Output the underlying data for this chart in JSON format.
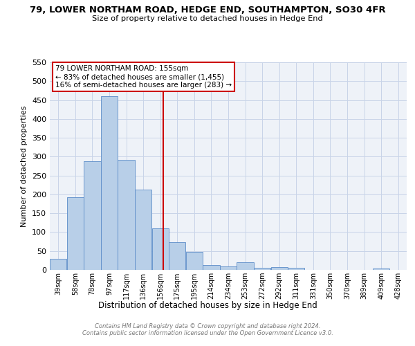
{
  "title": "79, LOWER NORTHAM ROAD, HEDGE END, SOUTHAMPTON, SO30 4FR",
  "subtitle": "Size of property relative to detached houses in Hedge End",
  "xlabel": "Distribution of detached houses by size in Hedge End",
  "ylabel": "Number of detached properties",
  "bar_values": [
    30,
    192,
    288,
    460,
    292,
    213,
    110,
    73,
    47,
    12,
    10,
    20,
    5,
    7,
    5,
    0,
    0,
    0,
    0,
    3,
    0
  ],
  "bar_labels": [
    "39sqm",
    "58sqm",
    "78sqm",
    "97sqm",
    "117sqm",
    "136sqm",
    "156sqm",
    "175sqm",
    "195sqm",
    "214sqm",
    "234sqm",
    "253sqm",
    "272sqm",
    "292sqm",
    "311sqm",
    "331sqm",
    "350sqm",
    "370sqm",
    "389sqm",
    "409sqm",
    "428sqm"
  ],
  "bar_color": "#b8cfe8",
  "bar_edgecolor": "#5b8cc8",
  "vline_x": 156,
  "vline_color": "#cc0000",
  "ylim": [
    0,
    550
  ],
  "yticks": [
    0,
    50,
    100,
    150,
    200,
    250,
    300,
    350,
    400,
    450,
    500,
    550
  ],
  "annotation_line1": "79 LOWER NORTHAM ROAD: 155sqm",
  "annotation_line2": "← 83% of detached houses are smaller (1,455)",
  "annotation_line3": "16% of semi-detached houses are larger (283) →",
  "annotation_box_color": "#cc0000",
  "grid_color": "#c8d4e8",
  "bg_color": "#eef2f8",
  "footer_line1": "Contains HM Land Registry data © Crown copyright and database right 2024.",
  "footer_line2": "Contains public sector information licensed under the Open Government Licence v3.0."
}
